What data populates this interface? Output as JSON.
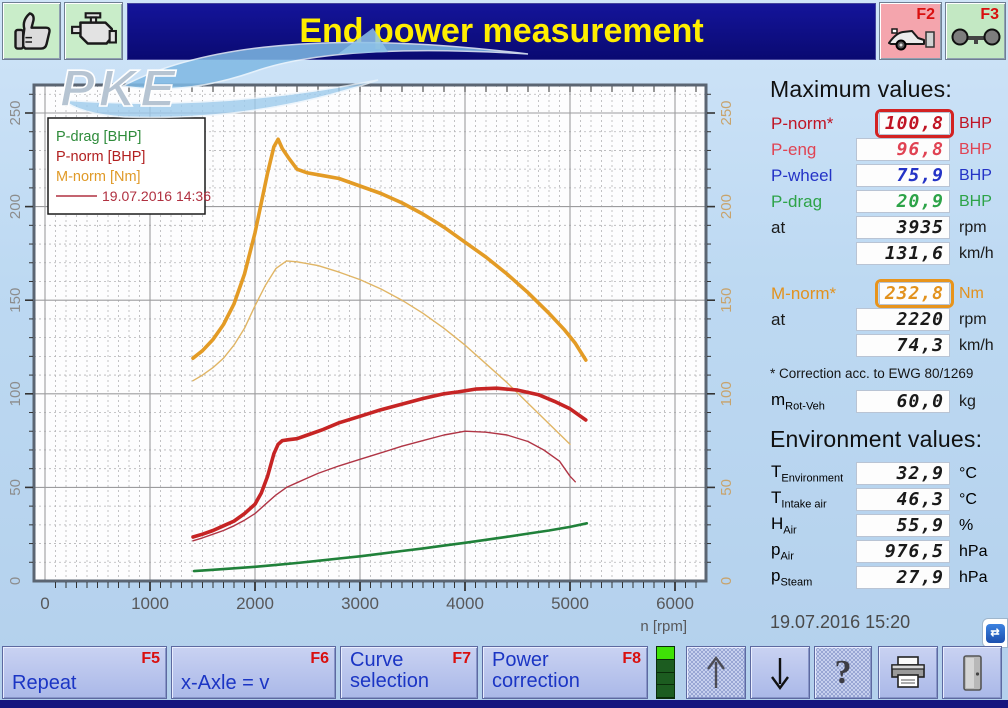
{
  "title": "End power measurement",
  "logo_text": "PKE",
  "topbar": {
    "f2_label": "F2",
    "f3_label": "F3"
  },
  "legend": {
    "entries": [
      {
        "label": "P-drag [BHP]",
        "color": "#2e8b3a"
      },
      {
        "label": "P-norm [BHP]",
        "color": "#b22020"
      },
      {
        "label": "M-norm [Nm]",
        "color": "#e09a28"
      }
    ],
    "ref_label": "19.07.2016 14:36",
    "ref_color": "#b03040"
  },
  "chart_data": {
    "type": "line",
    "title": "",
    "xlabel": "n [rpm]",
    "ylabel": "",
    "xlim": [
      0,
      6000
    ],
    "ylim": [
      0,
      265
    ],
    "x_ticks": [
      0,
      1000,
      2000,
      3000,
      4000,
      5000,
      6000
    ],
    "y_ticks": [
      0,
      50,
      100,
      150,
      200,
      250
    ],
    "grid": true,
    "legend_position": "top-left",
    "series": [
      {
        "name": "M-norm [Nm]",
        "color": "#e39b25",
        "width": 3.6,
        "points": [
          [
            1410,
            119
          ],
          [
            1500,
            123
          ],
          [
            1600,
            129
          ],
          [
            1700,
            137
          ],
          [
            1800,
            148
          ],
          [
            1900,
            164
          ],
          [
            2000,
            186
          ],
          [
            2060,
            202
          ],
          [
            2120,
            218
          ],
          [
            2180,
            232
          ],
          [
            2220,
            236
          ],
          [
            2260,
            231
          ],
          [
            2320,
            226
          ],
          [
            2400,
            220
          ],
          [
            2500,
            218
          ],
          [
            2650,
            216.5
          ],
          [
            2800,
            215
          ],
          [
            3000,
            211
          ],
          [
            3200,
            207
          ],
          [
            3400,
            202
          ],
          [
            3600,
            196
          ],
          [
            3800,
            189
          ],
          [
            4000,
            181
          ],
          [
            4200,
            173
          ],
          [
            4400,
            164
          ],
          [
            4600,
            154
          ],
          [
            4800,
            143
          ],
          [
            4950,
            134
          ],
          [
            5050,
            127
          ],
          [
            5150,
            118
          ]
        ]
      },
      {
        "name": "M 19.07.2016 14:36 [Nm]",
        "color": "#e0b565",
        "width": 1.4,
        "points": [
          [
            1410,
            107
          ],
          [
            1500,
            110
          ],
          [
            1600,
            114
          ],
          [
            1700,
            119
          ],
          [
            1800,
            126
          ],
          [
            1900,
            135
          ],
          [
            2000,
            147
          ],
          [
            2100,
            158
          ],
          [
            2200,
            167
          ],
          [
            2300,
            171
          ],
          [
            2400,
            170.5
          ],
          [
            2500,
            169.5
          ],
          [
            2600,
            168.5
          ],
          [
            2800,
            165
          ],
          [
            3000,
            161
          ],
          [
            3200,
            156
          ],
          [
            3400,
            150
          ],
          [
            3600,
            143
          ],
          [
            3800,
            135
          ],
          [
            4000,
            126
          ],
          [
            4200,
            116
          ],
          [
            4400,
            106
          ],
          [
            4600,
            95
          ],
          [
            4800,
            84
          ],
          [
            5000,
            73
          ]
        ]
      },
      {
        "name": "P-norm [BHP]",
        "color": "#c62424",
        "width": 3.6,
        "points": [
          [
            1410,
            23.5
          ],
          [
            1500,
            25
          ],
          [
            1600,
            27
          ],
          [
            1700,
            29.5
          ],
          [
            1800,
            32
          ],
          [
            1900,
            36
          ],
          [
            2000,
            41
          ],
          [
            2060,
            47
          ],
          [
            2120,
            56
          ],
          [
            2180,
            68
          ],
          [
            2220,
            73
          ],
          [
            2260,
            75
          ],
          [
            2320,
            75.5
          ],
          [
            2400,
            76
          ],
          [
            2500,
            78
          ],
          [
            2650,
            81
          ],
          [
            2800,
            84.5
          ],
          [
            3000,
            88
          ],
          [
            3200,
            91.5
          ],
          [
            3400,
            94.5
          ],
          [
            3600,
            97.5
          ],
          [
            3800,
            100
          ],
          [
            3935,
            101
          ],
          [
            4100,
            102.5
          ],
          [
            4300,
            103
          ],
          [
            4500,
            102
          ],
          [
            4700,
            99.5
          ],
          [
            4850,
            96
          ],
          [
            5000,
            92
          ],
          [
            5150,
            86
          ]
        ]
      },
      {
        "name": "P 19.07.2016 14:36 [BHP]",
        "color": "#b03545",
        "width": 1.4,
        "points": [
          [
            1410,
            21.5
          ],
          [
            1500,
            23
          ],
          [
            1600,
            25
          ],
          [
            1700,
            27
          ],
          [
            1800,
            29.5
          ],
          [
            1900,
            32.5
          ],
          [
            2000,
            36
          ],
          [
            2100,
            41
          ],
          [
            2200,
            46
          ],
          [
            2300,
            50
          ],
          [
            2400,
            52.5
          ],
          [
            2500,
            55
          ],
          [
            2600,
            57.5
          ],
          [
            2800,
            61.5
          ],
          [
            3000,
            65
          ],
          [
            3200,
            68.5
          ],
          [
            3400,
            72
          ],
          [
            3600,
            75
          ],
          [
            3800,
            78
          ],
          [
            4000,
            80
          ],
          [
            4200,
            79.5
          ],
          [
            4400,
            78
          ],
          [
            4600,
            74.5
          ],
          [
            4750,
            70
          ],
          [
            4900,
            64
          ],
          [
            5000,
            56
          ],
          [
            5050,
            53
          ]
        ]
      },
      {
        "name": "P-drag [BHP]",
        "color": "#20813a",
        "width": 2.6,
        "points": [
          [
            1420,
            5.3
          ],
          [
            1600,
            6
          ],
          [
            1800,
            6.8
          ],
          [
            2000,
            7.6
          ],
          [
            2200,
            8.6
          ],
          [
            2400,
            9.6
          ],
          [
            2600,
            10.8
          ],
          [
            2800,
            12
          ],
          [
            3000,
            13.2
          ],
          [
            3200,
            14.6
          ],
          [
            3400,
            16
          ],
          [
            3600,
            17.4
          ],
          [
            3800,
            18.9
          ],
          [
            4000,
            20.4
          ],
          [
            4200,
            22
          ],
          [
            4400,
            23.6
          ],
          [
            4600,
            25.3
          ],
          [
            4800,
            27
          ],
          [
            5000,
            28.9
          ],
          [
            5160,
            30.8
          ]
        ]
      }
    ]
  },
  "max_panel": {
    "heading": "Maximum values:",
    "rows": [
      {
        "label": "P-norm*",
        "value": "100,8",
        "unit": "BHP",
        "color": "#c01424",
        "box": "red"
      },
      {
        "label": "P-eng",
        "value": "96,8",
        "unit": "BHP",
        "color": "#e04353",
        "box": ""
      },
      {
        "label": "P-wheel",
        "value": "75,9",
        "unit": "BHP",
        "color": "#2433c6",
        "box": ""
      },
      {
        "label": "P-drag",
        "value": "20,9",
        "unit": "BHP",
        "color": "#2da348",
        "box": ""
      },
      {
        "label": "at",
        "value": "3935",
        "unit": "rpm",
        "color": "#1a1a1a",
        "box": ""
      },
      {
        "label": "",
        "value": "131,6",
        "unit": "km/h",
        "color": "#1a1a1a",
        "box": ""
      }
    ],
    "torque_rows": [
      {
        "label": "M-norm*",
        "value": "232,8",
        "unit": "Nm",
        "color": "#e2921e",
        "box": "orange"
      },
      {
        "label": "at",
        "value": "2220",
        "unit": "rpm",
        "color": "#1a1a1a",
        "box": ""
      },
      {
        "label": "",
        "value": "74,3",
        "unit": "km/h",
        "color": "#1a1a1a",
        "box": ""
      }
    ],
    "note": "* Correction acc. to EWG 80/1269",
    "mass_row": {
      "label_main": "m",
      "label_sub": "Rot-Veh",
      "value": "60,0",
      "unit": "kg",
      "color": "#1a1a1a"
    }
  },
  "env_panel": {
    "heading": "Environment values:",
    "rows": [
      {
        "label_main": "T",
        "label_sub": "Environment",
        "value": "32,9",
        "unit": "°C",
        "color": "#1a1a1a"
      },
      {
        "label_main": "T",
        "label_sub": "Intake air",
        "value": "46,3",
        "unit": "°C",
        "color": "#1a1a1a"
      },
      {
        "label_main": "H",
        "label_sub": "Air",
        "value": "55,9",
        "unit": "%",
        "color": "#1a1a1a"
      },
      {
        "label_main": "p",
        "label_sub": "Air",
        "value": "976,5",
        "unit": "hPa",
        "color": "#1a1a1a"
      },
      {
        "label_main": "p",
        "label_sub": "Steam",
        "value": "27,9",
        "unit": "hPa",
        "color": "#1a1a1a"
      }
    ],
    "datetime": "19.07.2016  15:20",
    "tv_glyph": "⇄"
  },
  "bottombar": {
    "buttons": [
      {
        "label": "Repeat",
        "fkey": "F5"
      },
      {
        "label": "x-Axle = v",
        "fkey": "F6"
      },
      {
        "label": "Curve\nselection",
        "fkey": "F7"
      },
      {
        "label": "Power\ncorrection",
        "fkey": "F8"
      }
    ],
    "help_glyph": "?"
  },
  "colors": {
    "title_bg": "#0d0d85",
    "title_text": "#ffee00",
    "axis_label": "#58585a",
    "y_left_label": "#8c8c8c",
    "y_right_label": "#c8a36c",
    "hl_red": "#d32222",
    "hl_orange": "#e8941c"
  }
}
